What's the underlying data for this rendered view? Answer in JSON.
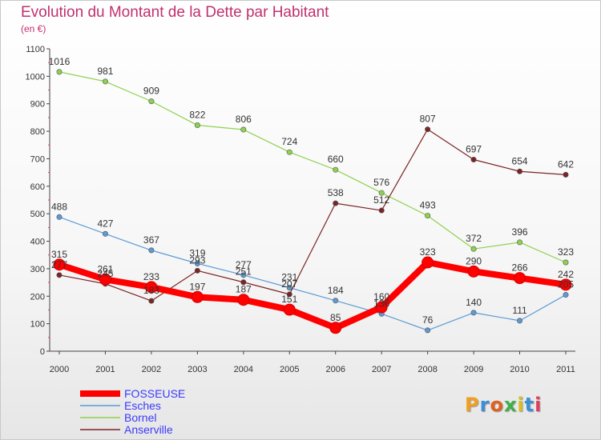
{
  "header": {
    "title": "Evolution du Montant de la Dette par Habitant",
    "subtitle": "(en €)"
  },
  "logo": {
    "letters": [
      "P",
      "r",
      "o",
      "x",
      "i",
      "t",
      "i"
    ],
    "colors": [
      "#f0a020",
      "#3a8fd8",
      "#e06020",
      "#3fb04a",
      "#d8c020",
      "#3a8fd8",
      "#e04060"
    ]
  },
  "chart_data": {
    "type": "line",
    "x": [
      "2000",
      "2001",
      "2002",
      "2003",
      "2004",
      "2005",
      "2006",
      "2007",
      "2008",
      "2009",
      "2010",
      "2011"
    ],
    "ylim": [
      0,
      1100
    ],
    "yticks": [
      0,
      100,
      200,
      300,
      400,
      500,
      600,
      700,
      800,
      900,
      1000,
      1100
    ],
    "grid": false,
    "legend_position": "bottom-left",
    "series": [
      {
        "name": "FOSSEUSE",
        "color": "#ff0000",
        "values": [
          315,
          261,
          233,
          197,
          187,
          151,
          85,
          160,
          323,
          290,
          266,
          242
        ]
      },
      {
        "name": "Esches",
        "color": "#5b9bd5",
        "values": [
          488,
          427,
          367,
          319,
          277,
          231,
          184,
          136,
          76,
          140,
          111,
          205
        ]
      },
      {
        "name": "Bornel",
        "color": "#8fd14f",
        "values": [
          1016,
          981,
          909,
          822,
          806,
          724,
          660,
          576,
          493,
          372,
          396,
          323
        ]
      },
      {
        "name": "Anserville",
        "color": "#7b2426",
        "values": [
          277,
          245,
          183,
          293,
          251,
          207,
          538,
          512,
          807,
          697,
          654,
          642
        ]
      }
    ]
  }
}
